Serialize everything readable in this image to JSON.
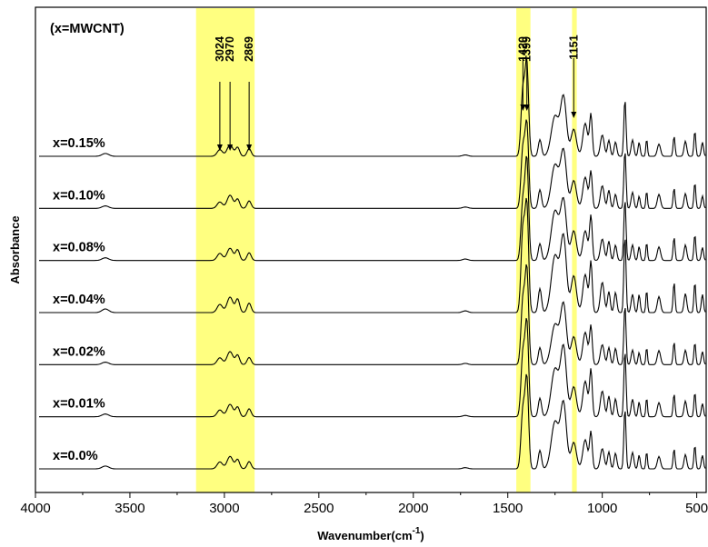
{
  "chart_data": {
    "type": "line",
    "xlabel": "Wavenumber(cm",
    "xlabel_sup": "-1",
    "xlabel_end": ")",
    "ylabel": "Absorbance",
    "xlim": [
      4000,
      450
    ],
    "x_reversed": true,
    "xticks": [
      4000,
      3500,
      3000,
      2500,
      2000,
      1500,
      1000,
      500
    ],
    "xtick_labels": [
      "4000",
      "3500",
      "3000",
      "2500",
      "2000",
      "1500",
      "1000",
      "500"
    ],
    "y_ticks_shown": false,
    "note": "(x=MWCNT)",
    "highlight_color": "#FFFF80",
    "highlight_bands": [
      {
        "from": 3150,
        "to": 2840
      },
      {
        "from": 1455,
        "to": 1380
      },
      {
        "from": 1160,
        "to": 1135
      }
    ],
    "peak_annotations": [
      {
        "label": "3024",
        "x": 3024,
        "group": "left"
      },
      {
        "label": "2970",
        "x": 2970,
        "group": "left"
      },
      {
        "label": "2869",
        "x": 2869,
        "group": "left"
      },
      {
        "label": "1420",
        "x": 1420,
        "group": "right"
      },
      {
        "label": "1399",
        "x": 1399,
        "group": "right"
      },
      {
        "label": "1151",
        "x": 1151,
        "group": "far"
      }
    ],
    "peak_list": [
      {
        "x": 3630,
        "h": 0.06,
        "w": 25
      },
      {
        "x": 3024,
        "h": 0.15,
        "w": 20
      },
      {
        "x": 2970,
        "h": 0.28,
        "w": 22
      },
      {
        "x": 2930,
        "h": 0.22,
        "w": 15
      },
      {
        "x": 2869,
        "h": 0.18,
        "w": 15
      },
      {
        "x": 1725,
        "h": 0.03,
        "w": 20
      },
      {
        "x": 1420,
        "h": 1.4,
        "w": 14
      },
      {
        "x": 1399,
        "h": 2.0,
        "w": 13
      },
      {
        "x": 1330,
        "h": 0.4,
        "w": 12
      },
      {
        "x": 1250,
        "h": 1.0,
        "w": 28
      },
      {
        "x": 1205,
        "h": 1.4,
        "w": 22
      },
      {
        "x": 1151,
        "h": 0.6,
        "w": 20
      },
      {
        "x": 1090,
        "h": 0.7,
        "w": 18
      },
      {
        "x": 1060,
        "h": 0.9,
        "w": 10
      },
      {
        "x": 1000,
        "h": 0.5,
        "w": 14
      },
      {
        "x": 965,
        "h": 0.4,
        "w": 10
      },
      {
        "x": 930,
        "h": 0.35,
        "w": 10
      },
      {
        "x": 880,
        "h": 1.3,
        "w": 8
      },
      {
        "x": 840,
        "h": 0.35,
        "w": 10
      },
      {
        "x": 805,
        "h": 0.3,
        "w": 8
      },
      {
        "x": 765,
        "h": 0.4,
        "w": 6
      },
      {
        "x": 700,
        "h": 0.3,
        "w": 12
      },
      {
        "x": 620,
        "h": 0.5,
        "w": 7
      },
      {
        "x": 560,
        "h": 0.35,
        "w": 10
      },
      {
        "x": 510,
        "h": 0.55,
        "w": 7
      },
      {
        "x": 470,
        "h": 0.3,
        "w": 8
      }
    ],
    "series": [
      {
        "name": "x=0.15%",
        "baseline": 0,
        "scale": 1.0
      },
      {
        "name": "x=0.10%",
        "baseline": 0,
        "scale": 1.0
      },
      {
        "name": "x=0.08%",
        "baseline": 0,
        "scale": 1.05
      },
      {
        "name": "x=0.04%",
        "baseline": 0,
        "scale": 1.3
      },
      {
        "name": "x=0.02%",
        "baseline": 0,
        "scale": 1.0
      },
      {
        "name": "x=0.01%",
        "baseline": 0,
        "scale": 1.1
      },
      {
        "name": "x=0.0%",
        "baseline": 0,
        "scale": 1.0
      }
    ]
  }
}
